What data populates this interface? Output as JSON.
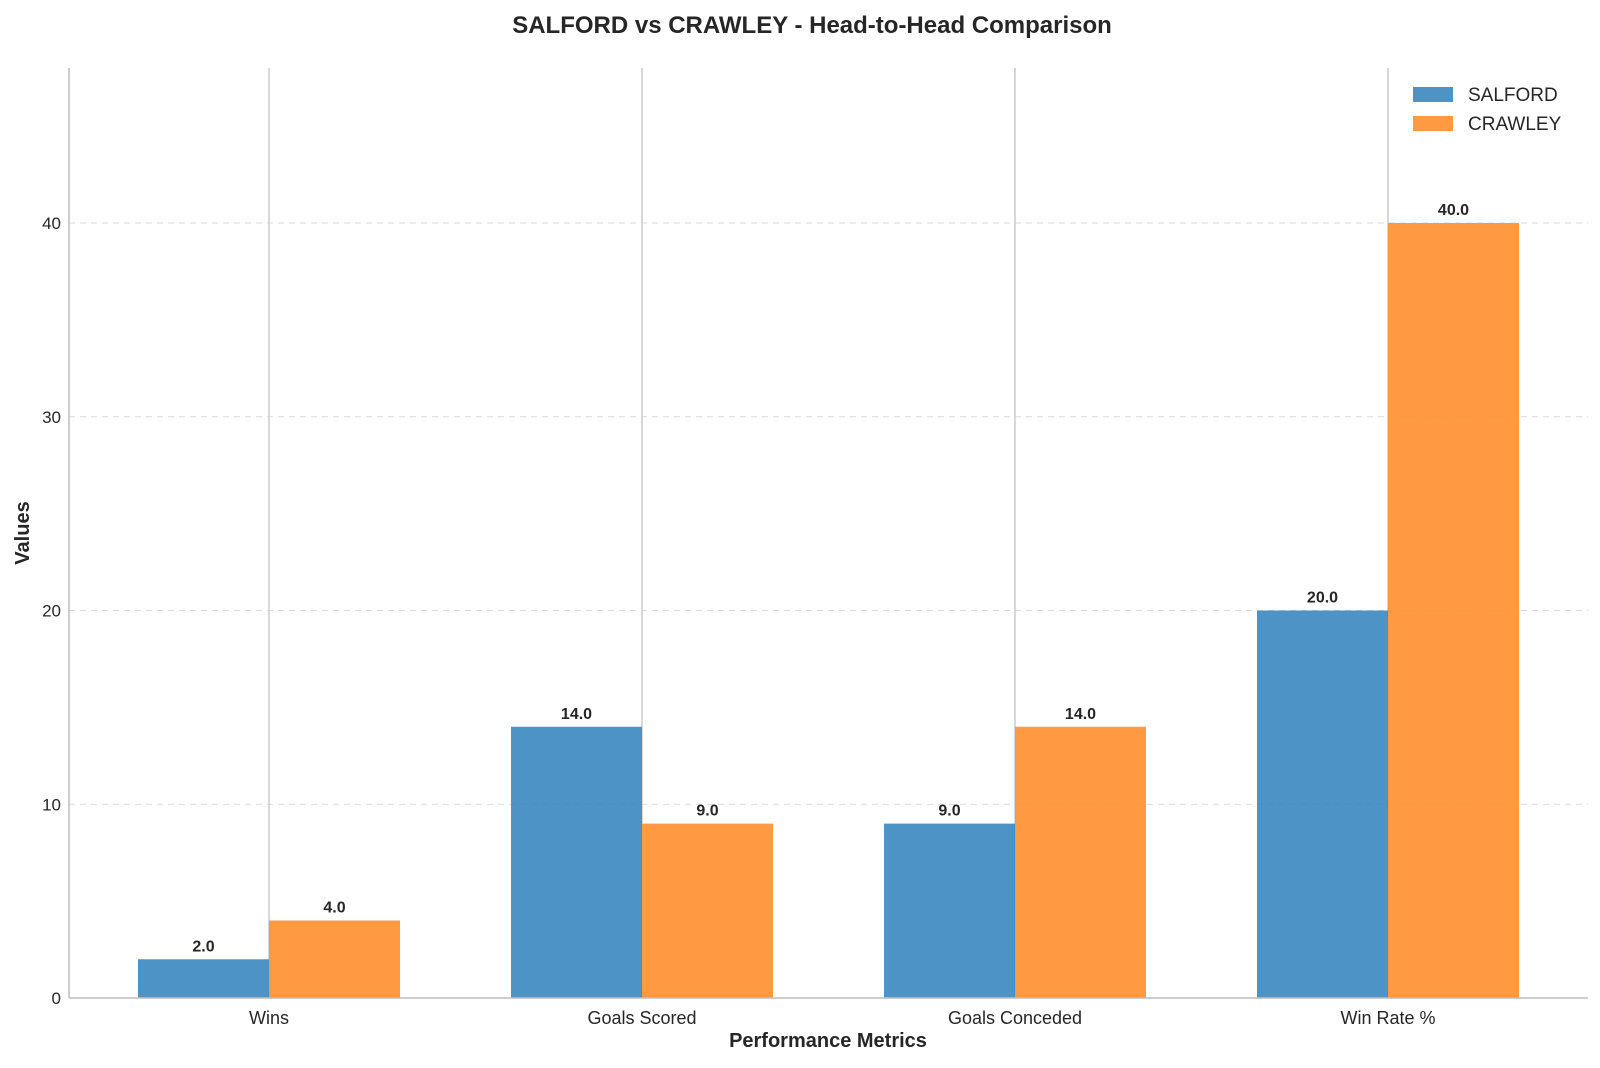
{
  "chart_data": {
    "type": "bar",
    "title": "SALFORD vs CRAWLEY - Head-to-Head Comparison",
    "xlabel": "Performance Metrics",
    "ylabel": "Values",
    "categories": [
      "Wins",
      "Goals Scored",
      "Goals Conceded",
      "Win Rate %"
    ],
    "series": [
      {
        "name": "SALFORD",
        "values": [
          2.0,
          14.0,
          9.0,
          20.0
        ],
        "color": "#3a87c0",
        "value_labels": [
          "2.0",
          "14.0",
          "9.0",
          "20.0"
        ]
      },
      {
        "name": "CRAWLEY",
        "values": [
          4.0,
          9.0,
          14.0,
          40.0
        ],
        "color": "#ff8f2e",
        "value_labels": [
          "4.0",
          "9.0",
          "14.0",
          "40.0"
        ]
      }
    ],
    "ylim": [
      0,
      48
    ],
    "yticks": [
      0,
      10,
      20,
      30,
      40
    ],
    "ytick_labels": [
      "0",
      "10",
      "20",
      "30",
      "40"
    ],
    "grid": "y dashed",
    "legend_position": "top-right"
  }
}
